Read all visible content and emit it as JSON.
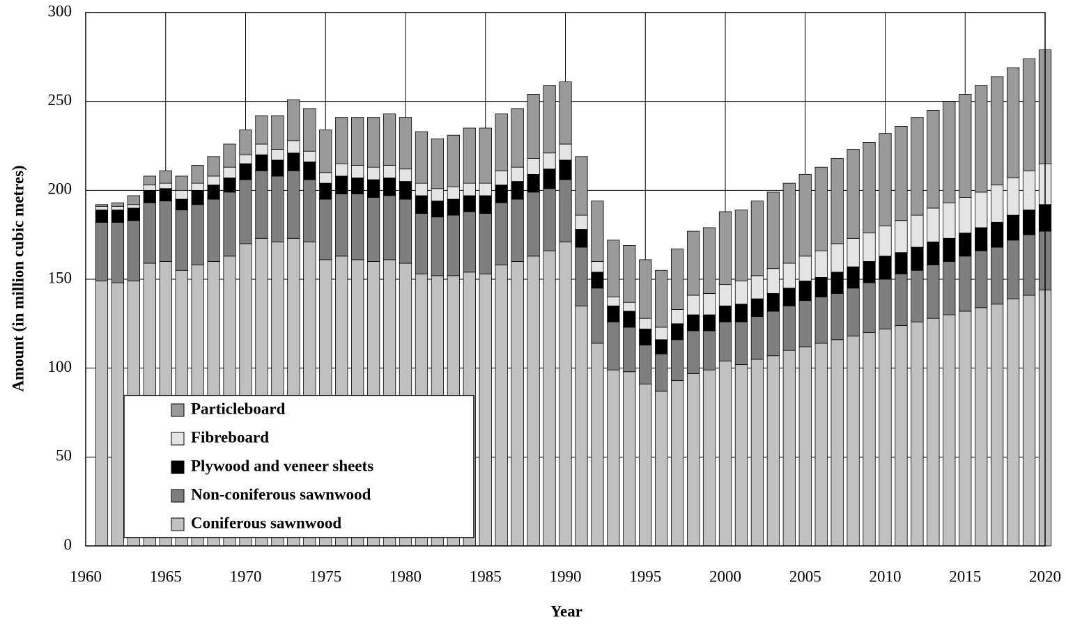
{
  "chart_data": {
    "type": "stacked_bar",
    "x_label": "Year",
    "y_label": "Amount (in million cubic metres)",
    "x": [
      1961,
      1962,
      1963,
      1964,
      1965,
      1966,
      1967,
      1968,
      1969,
      1970,
      1971,
      1972,
      1973,
      1974,
      1975,
      1976,
      1977,
      1978,
      1979,
      1980,
      1981,
      1982,
      1983,
      1984,
      1985,
      1986,
      1987,
      1988,
      1989,
      1990,
      1991,
      1992,
      1993,
      1994,
      1995,
      1996,
      1997,
      1998,
      1999,
      2000,
      2001,
      2002,
      2003,
      2004,
      2005,
      2006,
      2007,
      2008,
      2009,
      2010,
      2011,
      2012,
      2013,
      2014,
      2015,
      2016,
      2017,
      2018,
      2019,
      2020
    ],
    "xlim": [
      1960,
      2020
    ],
    "xticks": [
      1960,
      1965,
      1970,
      1975,
      1980,
      1985,
      1990,
      1995,
      2000,
      2005,
      2010,
      2015,
      2020
    ],
    "ylim": [
      0,
      300
    ],
    "yticks": [
      0,
      50,
      100,
      150,
      200,
      250,
      300
    ],
    "grid": true,
    "legend": "lower left",
    "series": [
      {
        "name": "Coniferous sawnwood",
        "color": "#c0c0c0",
        "values": [
          149,
          148,
          149,
          159,
          160,
          155,
          158,
          160,
          163,
          170,
          173,
          171,
          173,
          171,
          161,
          163,
          161,
          160,
          161,
          159,
          153,
          152,
          152,
          154,
          153,
          158,
          160,
          163,
          166,
          171,
          135,
          114,
          99,
          98,
          91,
          87,
          93,
          97,
          99,
          104,
          102,
          105,
          107,
          110,
          112,
          114,
          116,
          118,
          120,
          122,
          124,
          126,
          128,
          130,
          132,
          134,
          136,
          139,
          141,
          144
        ]
      },
      {
        "name": "Non-coniferous sawnwood",
        "color": "#7f7f7f",
        "values": [
          33,
          34,
          34,
          34,
          34,
          34,
          34,
          35,
          36,
          36,
          38,
          37,
          38,
          35,
          34,
          35,
          37,
          36,
          36,
          36,
          34,
          33,
          34,
          34,
          34,
          35,
          35,
          36,
          35,
          35,
          33,
          31,
          27,
          25,
          22,
          21,
          23,
          24,
          22,
          22,
          24,
          24,
          25,
          25,
          26,
          26,
          26,
          27,
          28,
          28,
          29,
          29,
          30,
          30,
          31,
          32,
          32,
          33,
          34,
          33
        ]
      },
      {
        "name": "Plywood and veneer sheets",
        "color": "#000000",
        "values": [
          7,
          7,
          7,
          7,
          7,
          6,
          8,
          8,
          8,
          9,
          9,
          9,
          10,
          10,
          9,
          10,
          9,
          10,
          10,
          10,
          10,
          9,
          9,
          9,
          10,
          10,
          10,
          10,
          11,
          11,
          10,
          9,
          9,
          9,
          9,
          8,
          9,
          9,
          9,
          9,
          10,
          10,
          10,
          10,
          11,
          11,
          12,
          12,
          12,
          13,
          12,
          13,
          13,
          13,
          13,
          13,
          14,
          14,
          14,
          15
        ]
      },
      {
        "name": "Fibreboard",
        "color": "#e4e4e4",
        "values": [
          2,
          2,
          2,
          3,
          3,
          5,
          4,
          5,
          6,
          5,
          6,
          6,
          7,
          6,
          6,
          7,
          7,
          7,
          7,
          7,
          7,
          7,
          7,
          7,
          7,
          8,
          8,
          9,
          9,
          9,
          8,
          6,
          5,
          5,
          6,
          7,
          8,
          11,
          12,
          12,
          13,
          13,
          14,
          14,
          14,
          15,
          16,
          16,
          16,
          17,
          18,
          18,
          19,
          20,
          20,
          20,
          21,
          21,
          22,
          23
        ]
      },
      {
        "name": "Particleboard",
        "color": "#9a9a9a",
        "values": [
          1,
          2,
          5,
          5,
          7,
          8,
          10,
          11,
          13,
          14,
          16,
          19,
          23,
          24,
          24,
          26,
          27,
          28,
          29,
          29,
          29,
          28,
          29,
          31,
          31,
          32,
          33,
          36,
          38,
          35,
          33,
          34,
          32,
          32,
          33,
          32,
          34,
          36,
          37,
          41,
          40,
          42,
          43,
          45,
          46,
          47,
          48,
          50,
          51,
          52,
          53,
          55,
          55,
          57,
          58,
          60,
          61,
          62,
          63,
          64
        ]
      }
    ]
  }
}
